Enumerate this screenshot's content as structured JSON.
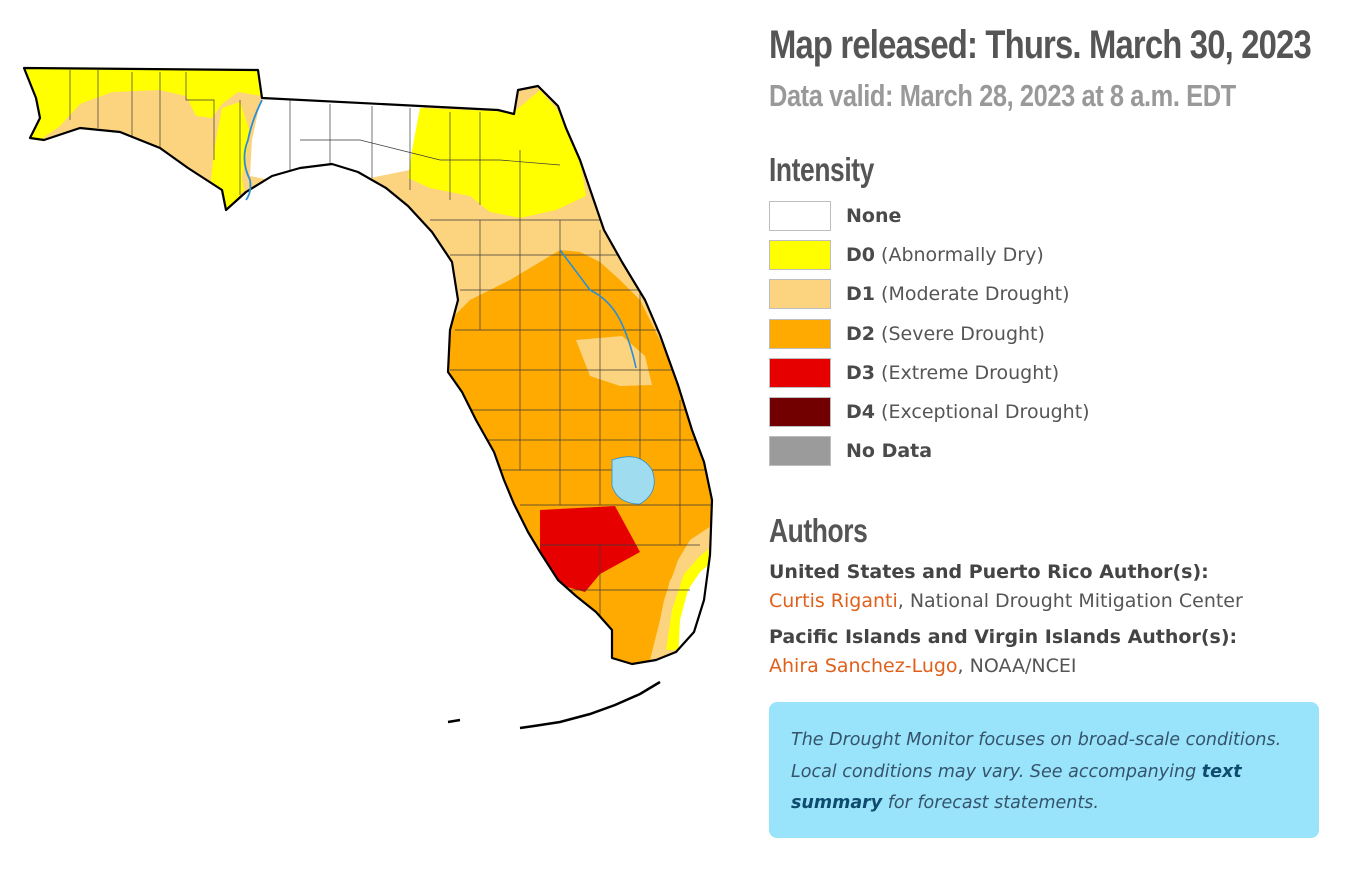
{
  "header": {
    "released": "Map released: Thurs. March 30, 2023",
    "valid": "Data valid: March 28, 2023 at 8 a.m. EDT"
  },
  "intensity": {
    "title": "Intensity",
    "items": [
      {
        "code": "",
        "desc": "None",
        "color": "#ffffff"
      },
      {
        "code": "D0",
        "desc": "(Abnormally Dry)",
        "color": "#ffff00"
      },
      {
        "code": "D1",
        "desc": "(Moderate Drought)",
        "color": "#fcd37f"
      },
      {
        "code": "D2",
        "desc": "(Severe Drought)",
        "color": "#ffaa00"
      },
      {
        "code": "D3",
        "desc": "(Extreme Drought)",
        "color": "#e60000"
      },
      {
        "code": "D4",
        "desc": "(Exceptional Drought)",
        "color": "#730000"
      },
      {
        "code": "",
        "desc": "No Data",
        "color": "#9b9b9b"
      }
    ]
  },
  "authors": {
    "title": "Authors",
    "us_label": "United States and Puerto Rico Author(s):",
    "us_name": "Curtis Riganti",
    "us_org": ", National Drought Mitigation Center",
    "pi_label": "Pacific Islands and Virgin Islands Author(s):",
    "pi_name": "Ahira Sanchez-Lugo",
    "pi_org": ", NOAA/NCEI"
  },
  "note": {
    "part1": "The Drought Monitor focuses on broad-scale conditions. Local conditions may vary. See accompanying ",
    "link": "text summary",
    "part2": " for forecast statements."
  },
  "map": {
    "region": "Florida",
    "water_color": "#9fdcef",
    "river_color": "#2a8fd6"
  }
}
